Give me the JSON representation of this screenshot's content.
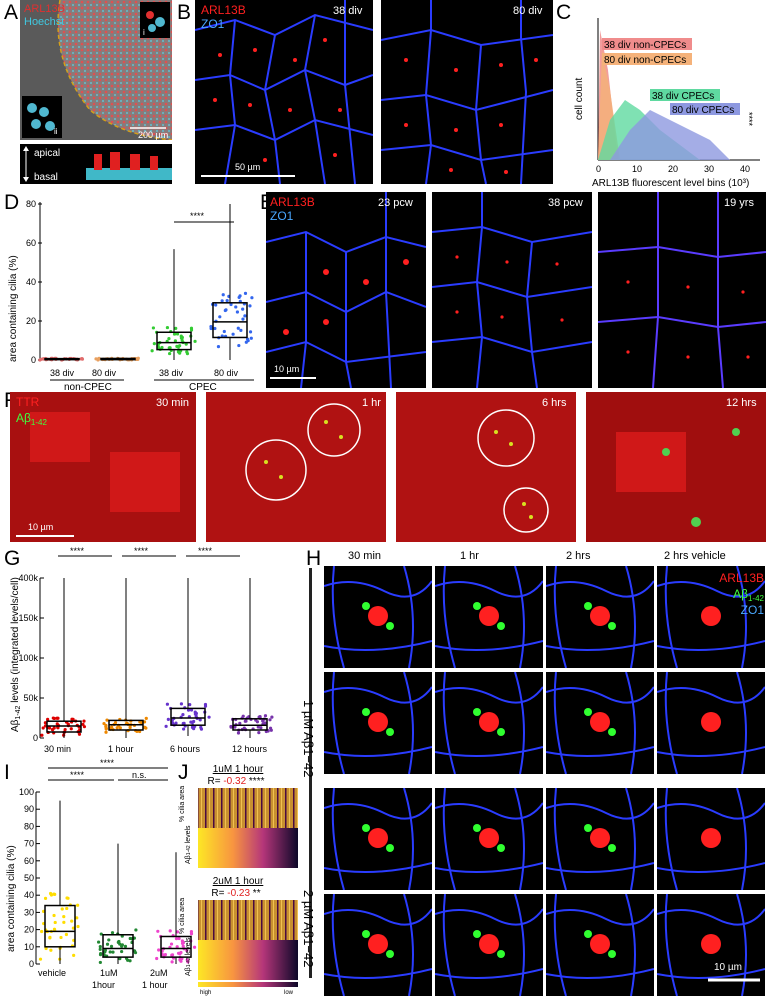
{
  "panels": {
    "A": {
      "letter": "A",
      "stain1": "ARL13B",
      "stain2": "Hoechst",
      "inset_i": "i",
      "inset_ii": "ii",
      "scale": "200 µm",
      "apical": "apical",
      "basal": "basal"
    },
    "B": {
      "letter": "B",
      "stain1": "ARL13B",
      "stain2": "ZO1",
      "time1": "38 div",
      "time2": "80 div",
      "scale": "50 µm"
    },
    "C": {
      "letter": "C",
      "ylabel": "cell count",
      "xlabel": "ARL13B fluorescent level bins (10³)",
      "ticks": [
        "0",
        "10",
        "20",
        "30",
        "40"
      ],
      "stars": "****",
      "legend": [
        {
          "name": "38 div non-CPECs",
          "color": "#f08c8c"
        },
        {
          "name": "80 div non-CPECs",
          "color": "#f5b27a"
        },
        {
          "name": "38 div CPECs",
          "color": "#5fd9a0"
        },
        {
          "name": "80 div CPECs",
          "color": "#8d98e0"
        }
      ]
    },
    "D": {
      "letter": "D",
      "ylabel": "area containing cilia (%)",
      "yticks": [
        "0",
        "20",
        "40",
        "60",
        "80"
      ],
      "groups": [
        "38 div",
        "80 div",
        "38 div",
        "80 div"
      ],
      "group_label_1": "non-CPEC",
      "group_label_2": "CPEC",
      "stars": "****"
    },
    "E": {
      "letter": "E",
      "stain1": "ARL13B",
      "stain2": "ZO1",
      "time1": "23 pcw",
      "time2": "38 pcw",
      "time3": "19 yrs",
      "scale": "10 µm"
    },
    "F": {
      "letter": "F",
      "stain1": "TTR",
      "stain2": "Aβ",
      "stain2_sub": "1-42",
      "time1": "30 min",
      "time2": "1 hr",
      "time3": "6 hrs",
      "time4": "12 hrs",
      "scale": "10 µm"
    },
    "G": {
      "letter": "G",
      "ylabel_pre": "Aβ",
      "ylabel_sub": "1-42",
      "ylabel_post": " levels (integrated levels/cell)",
      "yticks": [
        "0",
        "50k",
        "100k",
        "150k",
        "400k"
      ],
      "categories": [
        "30 min",
        "1 hour",
        "6 hours",
        "12 hours"
      ],
      "stars": [
        "****",
        "****",
        "****"
      ]
    },
    "H": {
      "letter": "H",
      "cols": [
        "30 min",
        "1 hr",
        "2 hrs",
        "2 hrs vehicle"
      ],
      "stain1": "ARL13B",
      "stain2": "Aβ",
      "stain2_sub": "1-42",
      "stain3": "ZO1",
      "row_group1": "1 µM Aβ1−42",
      "row_group2": "2 µM Aβ1−42",
      "scale": "10 µm"
    },
    "I": {
      "letter": "I",
      "ylabel": "area containing cilia (%)",
      "yticks": [
        "0",
        "10",
        "20",
        "30",
        "40",
        "50",
        "60",
        "70",
        "80",
        "90",
        "100"
      ],
      "categories": [
        "vehicle",
        "1uM",
        "2uM"
      ],
      "subcats": [
        "",
        "1hour",
        "1 hour"
      ],
      "stars1": "****",
      "stars2": "****",
      "ns": "n.s."
    },
    "J": {
      "letter": "J",
      "title1": "1uM 1 hour",
      "r1_pre": "R= ",
      "r1_val": "-0.32",
      "r1_stars": " ****",
      "title2": "2uM 1 hour",
      "r2_pre": "R= ",
      "r2_val": "-0.23",
      "r2_stars": " **",
      "row1": "% cilia area",
      "row2_pre": "Aβ",
      "row2_sub": "1-42",
      "row2_post": " levels",
      "high": "high",
      "low": "low"
    }
  },
  "chart_data": [
    {
      "type": "box",
      "panel": "D",
      "ylabel": "area containing cilia (%)",
      "ylim": [
        0,
        90
      ],
      "categories": [
        "non-CPEC 38 div",
        "non-CPEC 80 div",
        "CPEC 38 div",
        "CPEC 80 div"
      ],
      "median": [
        0.5,
        0.6,
        10,
        22
      ],
      "q1": [
        0.2,
        0.2,
        6,
        13
      ],
      "q3": [
        0.8,
        0.9,
        16,
        33
      ],
      "min": [
        0,
        0,
        0,
        0
      ],
      "max": [
        1,
        1.5,
        64,
        90
      ],
      "colors": [
        "#e06c6c",
        "#e8a060",
        "#33cc33",
        "#3366ee"
      ]
    },
    {
      "type": "box",
      "panel": "G",
      "ylim": [
        0,
        400000
      ],
      "categories": [
        "30 min",
        "1 hour",
        "6 hours",
        "12 hours"
      ],
      "median": [
        30000,
        33000,
        50000,
        32000
      ],
      "q1": [
        15000,
        20000,
        32000,
        20000
      ],
      "q3": [
        42000,
        44000,
        74000,
        48000
      ],
      "min": [
        0,
        0,
        5000,
        0
      ],
      "max": [
        400000,
        400000,
        400000,
        400000
      ],
      "colors": [
        "#dd0000",
        "#ee8800",
        "#6633cc",
        "#7733aa"
      ]
    },
    {
      "type": "box",
      "panel": "I",
      "ylim": [
        0,
        100
      ],
      "categories": [
        "vehicle",
        "1uM 1hour",
        "2uM 1 hour"
      ],
      "median": [
        19,
        9,
        9
      ],
      "q1": [
        10,
        4,
        4
      ],
      "q3": [
        34,
        17,
        16
      ],
      "min": [
        0,
        0,
        0
      ],
      "max": [
        95,
        70,
        65
      ],
      "colors": [
        "#ffdd00",
        "#228833",
        "#ee44cc"
      ]
    }
  ]
}
